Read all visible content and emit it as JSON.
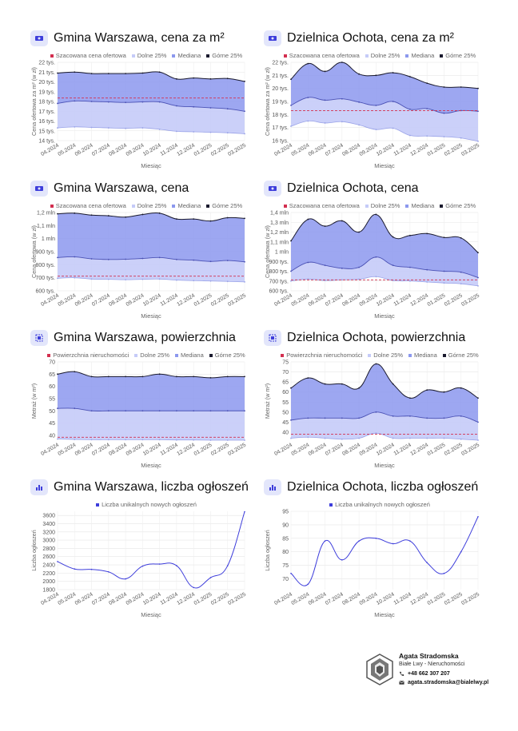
{
  "colors": {
    "red": "#d32f4f",
    "low": "#c5cbf8",
    "med": "#8c98ee",
    "high": "#1a1a2e",
    "line": "#3d3ddb"
  },
  "panels": [
    {
      "id": "p1",
      "title_bold": "Gmina Warszawa",
      "title_rest": ", cena za m²",
      "icon": "money-icon",
      "legend": [
        "Szacowana cena ofertowa",
        "Dolne 25%",
        "Mediana",
        "Górne 25%"
      ],
      "chart_data": {
        "type": "area",
        "ylabel": "Cena ofertowa za m² (w zł)",
        "xlabel": "Miesiąc",
        "x": [
          "04.2024",
          "05.2024",
          "06.2024",
          "07.2024",
          "08.2024",
          "09.2024",
          "10.2024",
          "11.2024",
          "12.2024",
          "01.2025",
          "02.2025",
          "03.2025"
        ],
        "ylim": [
          14000,
          22000
        ],
        "yticks": [
          14000,
          15000,
          16000,
          17000,
          18000,
          19000,
          20000,
          21000,
          22000
        ],
        "yticklabels": [
          "14 tys.",
          "15 tys.",
          "16 tys.",
          "17 tys.",
          "18 tys.",
          "19 tys.",
          "20 tys.",
          "21 tys.",
          "22 tys."
        ],
        "estimate": 18350,
        "series": [
          {
            "name": "Dolne 25%",
            "values": [
              15300,
              15400,
              15350,
              15300,
              15250,
              15300,
              15150,
              14950,
              14900,
              14850,
              14800,
              14700
            ]
          },
          {
            "name": "Mediana",
            "values": [
              17800,
              18050,
              18000,
              17950,
              17900,
              17950,
              17950,
              17550,
              17450,
              17350,
              17250,
              17000
            ]
          },
          {
            "name": "Górne 25%",
            "values": [
              20900,
              21000,
              20850,
              20850,
              20850,
              20900,
              21000,
              20300,
              20400,
              20300,
              20350,
              20050
            ]
          }
        ]
      }
    },
    {
      "id": "p2",
      "title_bold": "Dzielnica Ochota",
      "title_rest": ", cena za m²",
      "icon": "money-icon",
      "legend": [
        "Szacowana cena ofertowa",
        "Dolne 25%",
        "Mediana",
        "Górne 25%"
      ],
      "chart_data": {
        "type": "area",
        "ylabel": "Cena ofertowa za m² (w zł)",
        "xlabel": "Miesiąc",
        "x": [
          "04.2024",
          "05.2024",
          "06.2024",
          "07.2024",
          "08.2024",
          "09.2024",
          "10.2024",
          "11.2024",
          "12.2024",
          "01.2025",
          "02.2025",
          "03.2025"
        ],
        "ylim": [
          16000,
          22000
        ],
        "yticks": [
          16000,
          17000,
          18000,
          19000,
          20000,
          21000,
          22000
        ],
        "yticklabels": [
          "16 tys.",
          "17 tys.",
          "18 tys.",
          "19 tys.",
          "20 tys.",
          "21 tys.",
          "22 tys."
        ],
        "estimate": 18300,
        "series": [
          {
            "name": "Dolne 25%",
            "values": [
              17100,
              17500,
              17350,
              17450,
              17200,
              16850,
              16950,
              16400,
              16350,
              16300,
              16200,
              15950
            ]
          },
          {
            "name": "Mediana",
            "values": [
              18700,
              19300,
              19100,
              19200,
              18950,
              18700,
              19000,
              18400,
              18450,
              18100,
              18300,
              18250
            ]
          },
          {
            "name": "Górne 25%",
            "values": [
              20700,
              21900,
              21300,
              22000,
              21100,
              21000,
              21200,
              20900,
              20400,
              20100,
              20100,
              20000
            ]
          }
        ]
      }
    },
    {
      "id": "p3",
      "title_bold": "Gmina Warszawa",
      "title_rest": ", cena",
      "icon": "money-icon",
      "legend": [
        "Szacowana cena ofertowa",
        "Dolne 25%",
        "Mediana",
        "Górne 25%"
      ],
      "chart_data": {
        "type": "area",
        "ylabel": "Cena ofertowa (w zł)",
        "xlabel": "Miesiąc",
        "x": [
          "04.2024",
          "05.2024",
          "06.2024",
          "07.2024",
          "08.2024",
          "09.2024",
          "10.2024",
          "11.2024",
          "12.2024",
          "01.2025",
          "02.2025",
          "03.2025"
        ],
        "ylim": [
          600000,
          1200000
        ],
        "yticks": [
          600000,
          700000,
          800000,
          900000,
          1000000,
          1100000,
          1200000
        ],
        "yticklabels": [
          "600 tys.",
          "700 tys.",
          "800 tys.",
          "900 tys.",
          "1 mln",
          "1,1 mln",
          "1,2 mln"
        ],
        "estimate": 712000,
        "series": [
          {
            "name": "Dolne 25%",
            "values": [
              696000,
              700000,
              690000,
              688000,
              685000,
              688000,
              690000,
              682000,
              678000,
              675000,
              672000,
              668000
            ]
          },
          {
            "name": "Mediana",
            "values": [
              855000,
              860000,
              845000,
              840000,
              842000,
              848000,
              855000,
              840000,
              835000,
              825000,
              832000,
              822000
            ]
          },
          {
            "name": "Górne 25%",
            "values": [
              1190000,
              1195000,
              1180000,
              1175000,
              1165000,
              1185000,
              1195000,
              1150000,
              1150000,
              1135000,
              1160000,
              1155000
            ]
          }
        ]
      }
    },
    {
      "id": "p4",
      "title_bold": "Dzielnica Ochota",
      "title_rest": ", cena",
      "icon": "money-icon",
      "legend": [
        "Szacowana cena ofertowa",
        "Dolne 25%",
        "Mediana",
        "Górne 25%"
      ],
      "chart_data": {
        "type": "area",
        "ylabel": "Cena ofertowa (w zł)",
        "xlabel": "Miesiąc",
        "x": [
          "04.2024",
          "05.2024",
          "06.2024",
          "07.2024",
          "08.2024",
          "09.2024",
          "10.2024",
          "11.2024",
          "12.2024",
          "01.2025",
          "02.2025",
          "03.2025"
        ],
        "ylim": [
          600000,
          1400000
        ],
        "yticks": [
          600000,
          700000,
          800000,
          900000,
          1000000,
          1100000,
          1200000,
          1300000,
          1400000
        ],
        "yticklabels": [
          "600 tys.",
          "700 tys.",
          "800 tys.",
          "900 tys.",
          "1 mln",
          "1,1 mln",
          "1,2 mln",
          "1,3 mln",
          "1,4 mln"
        ],
        "estimate": 712000,
        "series": [
          {
            "name": "Dolne 25%",
            "values": [
              700000,
              720000,
              705000,
              712000,
              718000,
              745000,
              705000,
              700000,
              690000,
              680000,
              672000,
              650000
            ]
          },
          {
            "name": "Mediana",
            "values": [
              800000,
              890000,
              860000,
              830000,
              840000,
              945000,
              860000,
              840000,
              815000,
              800000,
              790000,
              735000
            ]
          },
          {
            "name": "Górne 25%",
            "values": [
              1110000,
              1330000,
              1260000,
              1315000,
              1200000,
              1380000,
              1150000,
              1165000,
              1185000,
              1145000,
              1140000,
              990000
            ]
          }
        ]
      }
    },
    {
      "id": "p5",
      "title_bold": "Gmina Warszawa",
      "title_rest": ", powierzchnia",
      "icon": "area-icon",
      "legend": [
        "Powierzchnia nieruchomości",
        "Dolne 25%",
        "Mediana",
        "Górne 25%"
      ],
      "chart_data": {
        "type": "area",
        "ylabel": "Metraż (w m²)",
        "xlabel": "Miesiąc",
        "x": [
          "04.2024",
          "05.2024",
          "06.2024",
          "07.2024",
          "08.2024",
          "09.2024",
          "10.2024",
          "11.2024",
          "12.2024",
          "01.2025",
          "02.2025",
          "03.2025"
        ],
        "ylim": [
          38,
          70
        ],
        "yticks": [
          40,
          45,
          50,
          55,
          60,
          65,
          70
        ],
        "yticklabels": [
          "40",
          "45",
          "50",
          "55",
          "60",
          "65",
          "70"
        ],
        "estimate": 39.2,
        "series": [
          {
            "name": "Dolne 25%",
            "values": [
              38.5,
              38.3,
              38.2,
              38.2,
              38.2,
              38.2,
              38.2,
              38.1,
              38.1,
              38.0,
              38.0,
              38.0
            ]
          },
          {
            "name": "Mediana",
            "values": [
              51,
              51,
              50,
              50,
              50,
              50,
              50,
              50,
              50,
              50,
              50,
              50
            ]
          },
          {
            "name": "Górne 25%",
            "values": [
              65,
              66,
              64,
              64,
              64,
              64,
              65,
              64,
              64,
              63.5,
              64,
              64
            ]
          }
        ]
      }
    },
    {
      "id": "p6",
      "title_bold": "Dzielnica Ochota",
      "title_rest": ", powierzchnia",
      "icon": "area-icon",
      "legend": [
        "Powierzchnia nieruchomości",
        "Dolne 25%",
        "Mediana",
        "Górne 25%"
      ],
      "chart_data": {
        "type": "area",
        "ylabel": "Metraż (w m²)",
        "xlabel": "Miesiąc",
        "x": [
          "04.2024",
          "05.2024",
          "06.2024",
          "07.2024",
          "08.2024",
          "09.2024",
          "10.2024",
          "11.2024",
          "12.2024",
          "01.2025",
          "02.2025",
          "03.2025"
        ],
        "ylim": [
          36,
          75
        ],
        "yticks": [
          40,
          45,
          50,
          55,
          60,
          65,
          70,
          75
        ],
        "yticklabels": [
          "40",
          "45",
          "50",
          "55",
          "60",
          "65",
          "70",
          "75"
        ],
        "estimate": 39,
        "series": [
          {
            "name": "Dolne 25%",
            "values": [
              37,
              37.5,
              37,
              36.5,
              37,
              39.5,
              37,
              37,
              37,
              37,
              36.5,
              36
            ]
          },
          {
            "name": "Mediana",
            "values": [
              46,
              47,
              47,
              47,
              47,
              50,
              48,
              48,
              47,
              47,
              48,
              45
            ]
          },
          {
            "name": "Górne 25%",
            "values": [
              62,
              67,
              64,
              64,
              62,
              74,
              64,
              57,
              61,
              60,
              62,
              57
            ]
          }
        ]
      }
    },
    {
      "id": "p7",
      "title_bold": "Gmina Warszawa",
      "title_rest": ", liczba ogłoszeń",
      "icon": "bar-chart-icon",
      "legend": [
        "Liczba unikalnych nowych ogłoszeń"
      ],
      "chart_data": {
        "type": "line",
        "ylabel": "Liczba ogłoszeń",
        "xlabel": "Miesiąc",
        "x": [
          "04.2024",
          "05.2024",
          "06.2024",
          "07.2024",
          "08.2024",
          "09.2024",
          "10.2024",
          "11.2024",
          "12.2024",
          "01.2025",
          "02.2025",
          "03.2025"
        ],
        "ylim": [
          1800,
          3700
        ],
        "yticks": [
          1800,
          2000,
          2200,
          2400,
          2600,
          2800,
          3000,
          3200,
          3400,
          3600
        ],
        "yticklabels": [
          "1800",
          "2000",
          "2200",
          "2400",
          "2600",
          "2800",
          "3000",
          "3200",
          "3400",
          "3600"
        ],
        "series": [
          {
            "name": "Liczba unikalnych nowych ogłoszeń",
            "values": [
              2480,
              2300,
              2290,
              2230,
              2060,
              2370,
              2420,
              2380,
              1850,
              2090,
              2380,
              3690
            ]
          }
        ]
      }
    },
    {
      "id": "p8",
      "title_bold": "Dzielnica Ochota",
      "title_rest": ", liczba ogłoszeń",
      "icon": "bar-chart-icon",
      "legend": [
        "Liczba unikalnych nowych ogłoszeń"
      ],
      "chart_data": {
        "type": "line",
        "ylabel": "Liczba ogłoszeń",
        "xlabel": "Miesiąc",
        "x": [
          "04.2024",
          "05.2024",
          "06.2024",
          "07.2024",
          "08.2024",
          "09.2024",
          "10.2024",
          "11.2024",
          "12.2024",
          "01.2025",
          "02.2025",
          "03.2025"
        ],
        "ylim": [
          66,
          95
        ],
        "yticks": [
          70,
          75,
          80,
          85,
          90,
          95
        ],
        "yticklabels": [
          "70",
          "75",
          "80",
          "85",
          "90",
          "95"
        ],
        "series": [
          {
            "name": "Liczba unikalnych nowych ogłoszeń",
            "values": [
              72,
              68,
              84,
              77,
              84,
              85,
              83,
              84,
              76,
              72,
              80,
              93
            ]
          }
        ]
      }
    }
  ],
  "footer": {
    "name": "Agata Stradomska",
    "company": "Białe Lwy - Nieruchomości",
    "phone": "+48 662 307 207",
    "email": "agata.stradomska@bialelwy.pl",
    "logo": "lion-logo"
  }
}
